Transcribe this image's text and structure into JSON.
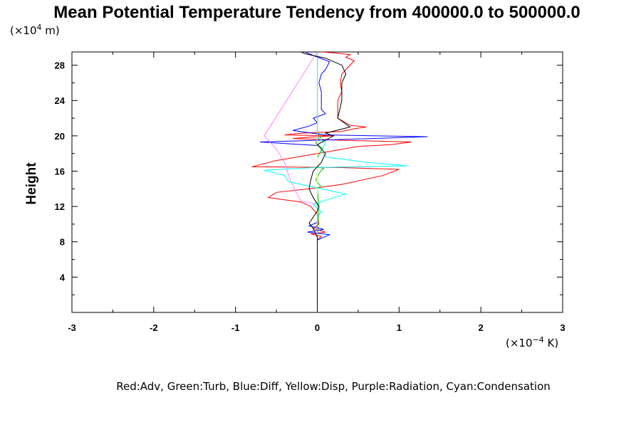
{
  "chart_data": {
    "type": "line",
    "title": "Mean Potential Temperature Tendency from 400000.0 to 500000.0",
    "ylabel": "Height",
    "y_unit_prefix": "(×10",
    "y_unit_exp": "4",
    "y_unit_suffix": " m)",
    "x_unit_prefix": "(×10",
    "x_unit_exp": "−4",
    "x_unit_suffix": " K)",
    "xlim": [
      -3,
      3
    ],
    "ylim": [
      0,
      29.5
    ],
    "x_ticks": [
      -3,
      -2,
      -1,
      0,
      1,
      2,
      3
    ],
    "x_tick_labels": [
      "-3",
      "-2",
      "-1",
      "0",
      "1",
      "2",
      "3"
    ],
    "y_ticks": [
      4,
      8,
      12,
      16,
      20,
      24,
      28
    ],
    "y_tick_labels": [
      "4",
      "8",
      "12",
      "16",
      "20",
      "24",
      "28"
    ],
    "legend_text": "Red:Adv, Green:Turb, Blue:Diff, Yellow:Disp, Purple:Radiation, Cyan:Condensation",
    "legend_placement": "bottom",
    "series": [
      {
        "color": "#ff0000",
        "points": [
          [
            0,
            0
          ],
          [
            0,
            8.2
          ],
          [
            0.05,
            8.6
          ],
          [
            -0.08,
            8.9
          ],
          [
            0.1,
            9.1
          ],
          [
            -0.05,
            9.5
          ],
          [
            0.02,
            10
          ],
          [
            0.01,
            11
          ],
          [
            -0.08,
            12
          ],
          [
            -0.2,
            12.5
          ],
          [
            -0.6,
            13
          ],
          [
            -0.5,
            13.6
          ],
          [
            -0.1,
            14
          ],
          [
            0.3,
            14.5
          ],
          [
            0.8,
            15.5
          ],
          [
            1.0,
            16.2
          ],
          [
            0.3,
            16.4
          ],
          [
            -0.8,
            16.5
          ],
          [
            -0.5,
            17.2
          ],
          [
            0.0,
            18
          ],
          [
            0.5,
            18.8
          ],
          [
            0.9,
            19.0
          ],
          [
            1.15,
            19.3
          ],
          [
            0.3,
            19.5
          ],
          [
            0.0,
            19.6
          ],
          [
            -0.3,
            19.7
          ],
          [
            -0.1,
            19.85
          ],
          [
            0.2,
            20.0
          ],
          [
            -0.4,
            20.1
          ],
          [
            -0.2,
            20.3
          ],
          [
            0.3,
            20.5
          ],
          [
            0.45,
            20.8
          ],
          [
            0.6,
            21.0
          ],
          [
            0.4,
            21.2
          ],
          [
            0.25,
            22
          ],
          [
            0.25,
            24
          ],
          [
            0.3,
            25
          ],
          [
            0.28,
            26
          ],
          [
            0.3,
            27
          ],
          [
            0.4,
            28
          ],
          [
            0.45,
            28.5
          ],
          [
            0.35,
            28.9
          ],
          [
            0.4,
            29.2
          ],
          [
            0.2,
            29.4
          ],
          [
            0.05,
            29.5
          ]
        ]
      },
      {
        "color": "#00cc00",
        "points": [
          [
            0,
            0
          ],
          [
            0,
            8
          ],
          [
            0.02,
            12
          ],
          [
            0.0,
            14
          ],
          [
            0.04,
            14.3
          ],
          [
            -0.02,
            15
          ],
          [
            0.04,
            16
          ],
          [
            0.08,
            16.3
          ],
          [
            0.0,
            16.5
          ],
          [
            0.0,
            17.5
          ],
          [
            0.06,
            18.6
          ],
          [
            -0.02,
            19.2
          ],
          [
            0.04,
            19.8
          ],
          [
            0.0,
            20.5
          ],
          [
            0.0,
            29.5
          ]
        ]
      },
      {
        "color": "#0000ff",
        "points": [
          [
            0,
            0
          ],
          [
            0,
            8.2
          ],
          [
            0.15,
            8.8
          ],
          [
            -0.12,
            9.1
          ],
          [
            0.08,
            9.4
          ],
          [
            -0.1,
            9.8
          ],
          [
            0.0,
            10.2
          ],
          [
            0.0,
            18.9
          ],
          [
            -0.7,
            19.3
          ],
          [
            0.0,
            19.5
          ],
          [
            1.35,
            19.9
          ],
          [
            0.1,
            20.1
          ],
          [
            -0.3,
            20.6
          ],
          [
            -0.1,
            21.1
          ],
          [
            0.0,
            21.5
          ],
          [
            -0.05,
            22
          ],
          [
            0.1,
            22.5
          ],
          [
            0.05,
            23
          ],
          [
            0.05,
            25
          ],
          [
            0.02,
            26
          ],
          [
            0.05,
            27
          ],
          [
            0.1,
            27.5
          ],
          [
            0.15,
            28.4
          ],
          [
            -0.05,
            29.1
          ],
          [
            -0.15,
            29.5
          ]
        ]
      },
      {
        "color": "#ffff00",
        "points": [
          [
            0,
            0
          ],
          [
            0,
            29.5
          ]
        ]
      },
      {
        "color": "#ff80ff",
        "points": [
          [
            0,
            0
          ],
          [
            0,
            12.3
          ],
          [
            -0.2,
            12.6
          ],
          [
            -0.28,
            14
          ],
          [
            -0.35,
            15.5
          ],
          [
            -0.4,
            17
          ],
          [
            -0.5,
            18.5
          ],
          [
            -0.65,
            20
          ],
          [
            0,
            29.5
          ]
        ]
      },
      {
        "color": "#00ffff",
        "points": [
          [
            0,
            0
          ],
          [
            0,
            10.8
          ],
          [
            0.05,
            11.4
          ],
          [
            -0.05,
            12.2
          ],
          [
            0.2,
            13
          ],
          [
            0.35,
            13.4
          ],
          [
            0.05,
            14
          ],
          [
            -0.35,
            14.8
          ],
          [
            -0.4,
            15.5
          ],
          [
            -0.65,
            16.1
          ],
          [
            -0.05,
            16.4
          ],
          [
            1.1,
            16.6
          ],
          [
            0.6,
            17
          ],
          [
            0.1,
            17.6
          ],
          [
            0.05,
            18.3
          ],
          [
            0.1,
            19.2
          ],
          [
            0.0,
            19.8
          ],
          [
            0.0,
            29.5
          ]
        ]
      },
      {
        "color": "#000000",
        "points": [
          [
            0,
            0
          ],
          [
            0,
            8.5
          ],
          [
            -0.05,
            9.5
          ],
          [
            -0.1,
            10.1
          ],
          [
            -0.05,
            10.8
          ],
          [
            0.0,
            11.5
          ],
          [
            0.02,
            12
          ],
          [
            -0.05,
            13
          ],
          [
            -0.1,
            14
          ],
          [
            -0.08,
            15
          ],
          [
            -0.05,
            16
          ],
          [
            0.05,
            17
          ],
          [
            0.1,
            18
          ],
          [
            0.0,
            19
          ],
          [
            0.2,
            20
          ],
          [
            0.1,
            20.3
          ],
          [
            0.4,
            21
          ],
          [
            0.25,
            22
          ],
          [
            0.3,
            24
          ],
          [
            0.3,
            26
          ],
          [
            0.35,
            27
          ],
          [
            0.3,
            28
          ],
          [
            0.1,
            28.8
          ],
          [
            -0.15,
            29.3
          ],
          [
            -0.2,
            29.5
          ]
        ]
      }
    ]
  }
}
